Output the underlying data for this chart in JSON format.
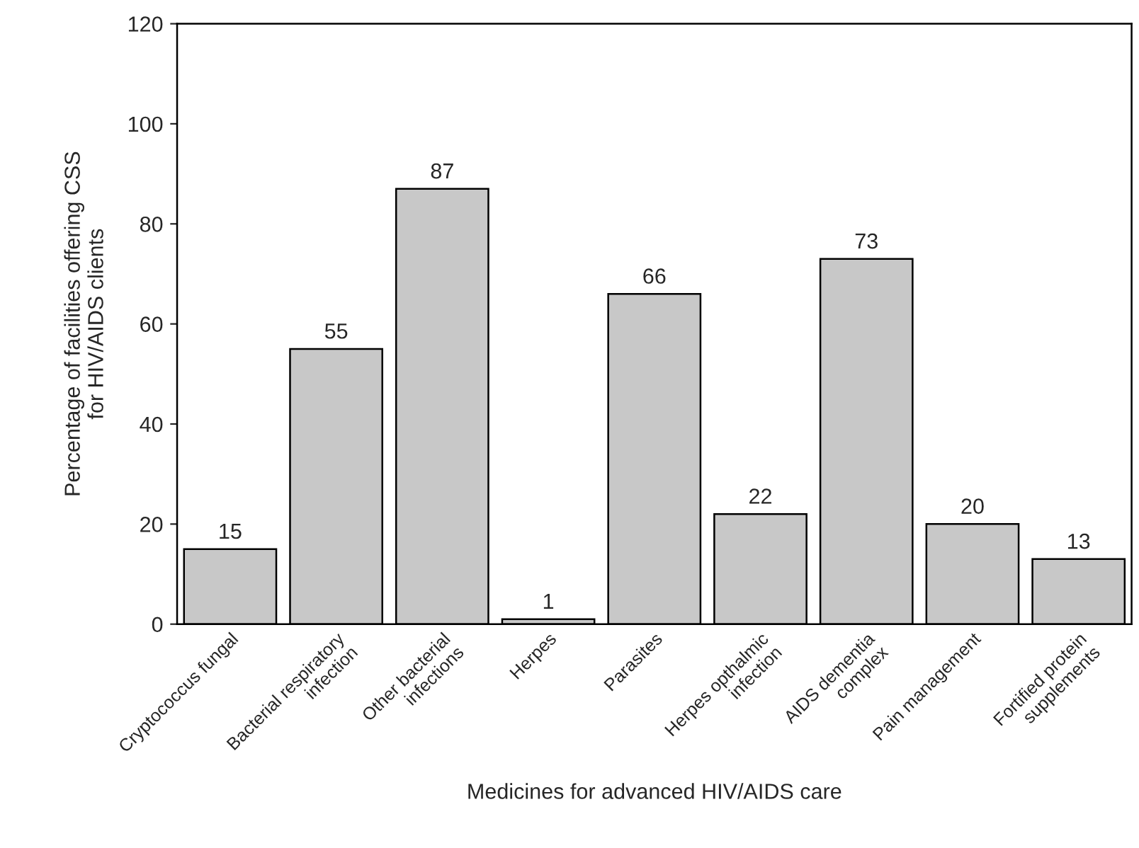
{
  "chart_data": {
    "type": "bar",
    "xlabel": "Medicines for advanced HIV/AIDS care",
    "ylabel": "Percentage of facilities offering CSS\nfor HIV/AIDS clients",
    "categories": [
      "Cryptococcus fungal",
      "Bacterial respiratory\ninfection",
      "Other bacterial\ninfections",
      "Herpes",
      "Parasites",
      "Herpes opthalmic\ninfection",
      "AIDS dementia\ncomplex",
      "Pain management",
      "Fortified protein\nsupplements"
    ],
    "values": [
      15,
      55,
      87,
      1,
      66,
      22,
      73,
      20,
      13
    ],
    "color": "#c8c8c8",
    "ylim": [
      0,
      120
    ],
    "yticks": [
      0,
      20,
      40,
      60,
      80,
      100,
      120
    ],
    "data_labels": true,
    "grid": false,
    "legend": false
  }
}
